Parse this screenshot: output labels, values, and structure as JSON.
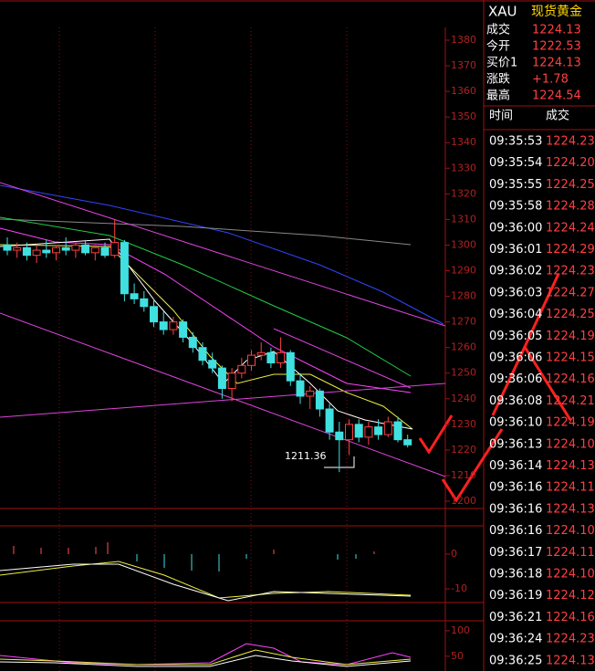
{
  "chart": {
    "type": "candlestick",
    "ylim": [
      1200,
      1380
    ],
    "yticks": [
      1380,
      1370,
      1360,
      1350,
      1340,
      1330,
      1320,
      1310,
      1300,
      1290,
      1280,
      1270,
      1260,
      1250,
      1240,
      1230,
      1220,
      1210,
      1200
    ],
    "annotation": "1211.36",
    "candles": [
      [
        1300,
        1303,
        1296,
        1298
      ],
      [
        1298,
        1301,
        1295,
        1299
      ],
      [
        1299,
        1301,
        1294,
        1296
      ],
      [
        1296,
        1300,
        1293,
        1298
      ],
      [
        1298,
        1302,
        1295,
        1297
      ],
      [
        1297,
        1300,
        1294,
        1299
      ],
      [
        1299,
        1303,
        1296,
        1298
      ],
      [
        1298,
        1301,
        1295,
        1300
      ],
      [
        1300,
        1302,
        1296,
        1297
      ],
      [
        1297,
        1300,
        1294,
        1299
      ],
      [
        1299,
        1301,
        1295,
        1296
      ],
      [
        1296,
        1310,
        1295,
        1301
      ],
      [
        1301,
        1302,
        1278,
        1281
      ],
      [
        1281,
        1285,
        1277,
        1279
      ],
      [
        1279,
        1282,
        1274,
        1276
      ],
      [
        1276,
        1279,
        1268,
        1270
      ],
      [
        1270,
        1274,
        1265,
        1267
      ],
      [
        1267,
        1272,
        1265,
        1270
      ],
      [
        1270,
        1271,
        1262,
        1264
      ],
      [
        1264,
        1266,
        1258,
        1260
      ],
      [
        1260,
        1262,
        1253,
        1255
      ],
      [
        1255,
        1258,
        1250,
        1252
      ],
      [
        1252,
        1253,
        1240,
        1244
      ],
      [
        1244,
        1252,
        1239,
        1250
      ],
      [
        1250,
        1256,
        1248,
        1253
      ],
      [
        1253,
        1259,
        1251,
        1257
      ],
      [
        1257,
        1262,
        1255,
        1258
      ],
      [
        1258,
        1260,
        1252,
        1254
      ],
      [
        1254,
        1264,
        1252,
        1258
      ],
      [
        1258,
        1259,
        1245,
        1247
      ],
      [
        1247,
        1250,
        1238,
        1241
      ],
      [
        1241,
        1245,
        1236,
        1243
      ],
      [
        1243,
        1244,
        1233,
        1236
      ],
      [
        1236,
        1238,
        1224,
        1227
      ],
      [
        1227,
        1231,
        1211.36,
        1224
      ],
      [
        1224,
        1232,
        1218,
        1230
      ],
      [
        1230,
        1232,
        1223,
        1225
      ],
      [
        1225,
        1231,
        1222,
        1229
      ],
      [
        1229,
        1232,
        1224,
        1226
      ],
      [
        1226,
        1233,
        1225,
        1231
      ],
      [
        1231,
        1233,
        1223,
        1224
      ],
      [
        1224,
        1226,
        1221,
        1222
      ]
    ]
  },
  "macd": {
    "ylim": [
      -13.4,
      7.6
    ],
    "yticks": [
      0,
      -10
    ]
  },
  "kdj": {
    "ylim": [
      21,
      116
    ],
    "yticks": [
      100,
      50
    ]
  },
  "quote": {
    "symbol": "XAU",
    "name": "现货黄金",
    "rows": [
      {
        "label": "成交",
        "value": "1224.13"
      },
      {
        "label": "今开",
        "value": "1222.53"
      },
      {
        "label": "买价1",
        "value": "1224.13"
      },
      {
        "label": "涨跌",
        "value": "+1.78"
      },
      {
        "label": "最高",
        "value": "1224.54"
      }
    ]
  },
  "trades": {
    "headers": [
      "时间",
      "成交"
    ],
    "rows": [
      [
        "09:35:53",
        "1224.23"
      ],
      [
        "09:35:54",
        "1224.20"
      ],
      [
        "09:35:55",
        "1224.25"
      ],
      [
        "09:35:58",
        "1224.28"
      ],
      [
        "09:36:00",
        "1224.24"
      ],
      [
        "09:36:01",
        "1224.29"
      ],
      [
        "09:36:02",
        "1224.23"
      ],
      [
        "09:36:03",
        "1224.27"
      ],
      [
        "09:36:04",
        "1224.25"
      ],
      [
        "09:36:05",
        "1224.19"
      ],
      [
        "09:36:06",
        "1224.15"
      ],
      [
        "09:36:06",
        "1224.16"
      ],
      [
        "09:36:08",
        "1224.21"
      ],
      [
        "09:36:10",
        "1224.19"
      ],
      [
        "09:36:13",
        "1224.10"
      ],
      [
        "09:36:14",
        "1224.13"
      ],
      [
        "09:36:16",
        "1224.11"
      ],
      [
        "09:36:16",
        "1224.13"
      ],
      [
        "09:36:16",
        "1224.10"
      ],
      [
        "09:36:17",
        "1224.11"
      ],
      [
        "09:36:18",
        "1224.10"
      ],
      [
        "09:36:19",
        "1224.12"
      ],
      [
        "09:36:21",
        "1224.16"
      ],
      [
        "09:36:24",
        "1224.23"
      ],
      [
        "09:36:25",
        "1224.13"
      ]
    ]
  }
}
